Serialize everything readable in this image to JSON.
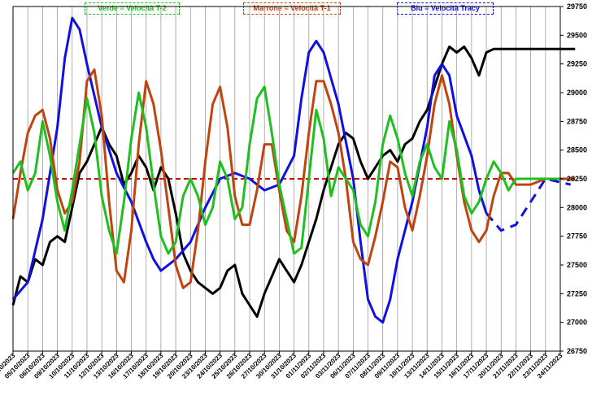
{
  "chart_data": {
    "type": "line",
    "title": "",
    "legend": [
      {
        "label": "Verde = Velocità T-2",
        "color": "#1fbf1f"
      },
      {
        "label": "Marrone = Velocità T-1",
        "color": "#c0440f"
      },
      {
        "label": "Blu = Velocità Tracy",
        "color": "#1010e0"
      }
    ],
    "ylim": [
      26750,
      29750
    ],
    "yticks": [
      26750,
      27000,
      27250,
      27500,
      27750,
      28000,
      28250,
      28500,
      28750,
      29000,
      29250,
      29500,
      29750
    ],
    "x_tick_labels": [
      "04/10/2023",
      "05/10/2023",
      "06/10/2023",
      "09/10/2023",
      "10/10/2023",
      "11/10/2023",
      "12/10/2023",
      "13/10/2023",
      "16/10/2023",
      "17/10/2023",
      "18/10/2023",
      "19/10/2023",
      "20/10/2023",
      "23/10/2023",
      "24/10/2023",
      "25/10/2023",
      "26/10/2023",
      "27/10/2023",
      "30/10/2023",
      "31/10/2023",
      "01/11/2023",
      "02/11/2023",
      "03/11/2023",
      "06/11/2023",
      "07/11/2023",
      "08/11/2023",
      "09/11/2023",
      "10/11/2023",
      "13/11/2023",
      "14/11/2023",
      "15/11/2023",
      "16/11/2023",
      "17/11/2023",
      "20/11/2023",
      "21/11/2023",
      "22/11/2023",
      "23/11/2023",
      "24/11/2023"
    ],
    "reference_line": {
      "value": 28250,
      "color": "#cc0000",
      "style": "dashed"
    },
    "series": [
      {
        "color": "#000000",
        "style": "solid",
        "points": [
          [
            0,
            27150
          ],
          [
            0.5,
            27400
          ],
          [
            1,
            27350
          ],
          [
            1.5,
            27550
          ],
          [
            2,
            27500
          ],
          [
            2.5,
            27700
          ],
          [
            3,
            27750
          ],
          [
            3.5,
            27700
          ],
          [
            4,
            28000
          ],
          [
            4.5,
            28300
          ],
          [
            5,
            28400
          ],
          [
            5.5,
            28550
          ],
          [
            6,
            28700
          ],
          [
            6.5,
            28550
          ],
          [
            7,
            28450
          ],
          [
            7.5,
            28200
          ],
          [
            8,
            28300
          ],
          [
            8.5,
            28450
          ],
          [
            9,
            28350
          ],
          [
            9.5,
            28150
          ],
          [
            10,
            28350
          ],
          [
            10.5,
            28250
          ],
          [
            11,
            27950
          ],
          [
            11.5,
            27600
          ],
          [
            12,
            27450
          ],
          [
            12.5,
            27350
          ],
          [
            13,
            27300
          ],
          [
            13.5,
            27250
          ],
          [
            14,
            27300
          ],
          [
            14.5,
            27450
          ],
          [
            15,
            27500
          ],
          [
            15.5,
            27250
          ],
          [
            16,
            27150
          ],
          [
            16.5,
            27050
          ],
          [
            17,
            27250
          ],
          [
            17.5,
            27400
          ],
          [
            18,
            27550
          ],
          [
            18.5,
            27450
          ],
          [
            19,
            27350
          ],
          [
            19.5,
            27500
          ],
          [
            20,
            27700
          ],
          [
            20.5,
            27900
          ],
          [
            21,
            28150
          ],
          [
            21.5,
            28350
          ],
          [
            22,
            28550
          ],
          [
            22.5,
            28650
          ],
          [
            23,
            28600
          ],
          [
            23.5,
            28400
          ],
          [
            24,
            28250
          ],
          [
            24.5,
            28350
          ],
          [
            25,
            28450
          ],
          [
            25.5,
            28500
          ],
          [
            26,
            28400
          ],
          [
            26.5,
            28550
          ],
          [
            27,
            28600
          ],
          [
            27.5,
            28750
          ],
          [
            28,
            28850
          ],
          [
            28.5,
            29050
          ],
          [
            29,
            29250
          ],
          [
            29.5,
            29400
          ],
          [
            30,
            29350
          ],
          [
            30.5,
            29400
          ],
          [
            31,
            29300
          ],
          [
            31.5,
            29150
          ],
          [
            32,
            29350
          ],
          [
            32.5,
            29380
          ],
          [
            33,
            29380
          ],
          [
            35,
            29380
          ],
          [
            37,
            29380
          ],
          [
            38,
            29380
          ]
        ]
      },
      {
        "color": "#1010e0",
        "style": "solid",
        "points": [
          [
            0,
            27200
          ],
          [
            1,
            27350
          ],
          [
            2,
            27900
          ],
          [
            3,
            28700
          ],
          [
            3.5,
            29300
          ],
          [
            4,
            29650
          ],
          [
            4.5,
            29550
          ],
          [
            5,
            29250
          ],
          [
            6,
            28700
          ],
          [
            7,
            28300
          ],
          [
            8,
            28050
          ],
          [
            9,
            27700
          ],
          [
            9.5,
            27550
          ],
          [
            10,
            27450
          ],
          [
            11,
            27550
          ],
          [
            12,
            27700
          ],
          [
            13,
            28000
          ],
          [
            14,
            28250
          ],
          [
            15,
            28300
          ],
          [
            16,
            28250
          ],
          [
            17,
            28150
          ],
          [
            18,
            28200
          ],
          [
            19,
            28450
          ],
          [
            19.5,
            28950
          ],
          [
            20,
            29350
          ],
          [
            20.5,
            29450
          ],
          [
            21,
            29350
          ],
          [
            22,
            28900
          ],
          [
            23,
            28250
          ],
          [
            23.5,
            27700
          ],
          [
            24,
            27200
          ],
          [
            24.5,
            27050
          ],
          [
            25,
            27000
          ],
          [
            25.5,
            27200
          ],
          [
            26,
            27550
          ],
          [
            27,
            28050
          ],
          [
            28,
            28700
          ],
          [
            28.5,
            29150
          ],
          [
            29,
            29250
          ],
          [
            29.5,
            29150
          ],
          [
            30,
            28800
          ],
          [
            31,
            28450
          ],
          [
            31.5,
            28150
          ],
          [
            32,
            27950
          ]
        ]
      },
      {
        "color": "#1010e0",
        "style": "dashed",
        "points": [
          [
            32,
            27950
          ],
          [
            33,
            27800
          ],
          [
            34,
            27850
          ],
          [
            35,
            28050
          ],
          [
            36,
            28250
          ],
          [
            37,
            28220
          ],
          [
            37.7,
            28200
          ]
        ]
      },
      {
        "color": "#c0440f",
        "style": "solid",
        "points": [
          [
            0,
            27900
          ],
          [
            0.5,
            28300
          ],
          [
            1,
            28650
          ],
          [
            1.5,
            28800
          ],
          [
            2,
            28850
          ],
          [
            2.5,
            28600
          ],
          [
            3,
            28150
          ],
          [
            3.5,
            27950
          ],
          [
            4,
            28050
          ],
          [
            4.5,
            28400
          ],
          [
            5,
            29100
          ],
          [
            5.5,
            29200
          ],
          [
            6,
            28800
          ],
          [
            6.5,
            28050
          ],
          [
            7,
            27450
          ],
          [
            7.5,
            27350
          ],
          [
            8,
            27800
          ],
          [
            8.5,
            28550
          ],
          [
            9,
            29100
          ],
          [
            9.5,
            28900
          ],
          [
            10,
            28500
          ],
          [
            10.5,
            28000
          ],
          [
            11,
            27500
          ],
          [
            11.5,
            27300
          ],
          [
            12,
            27350
          ],
          [
            12.5,
            27800
          ],
          [
            13,
            28400
          ],
          [
            13.5,
            28900
          ],
          [
            14,
            29050
          ],
          [
            14.5,
            28700
          ],
          [
            15,
            28100
          ],
          [
            15.5,
            27850
          ],
          [
            16,
            27850
          ],
          [
            16.5,
            28150
          ],
          [
            17,
            28550
          ],
          [
            17.5,
            28550
          ],
          [
            18,
            28150
          ],
          [
            18.5,
            27800
          ],
          [
            19,
            27700
          ],
          [
            19.5,
            28100
          ],
          [
            20,
            28650
          ],
          [
            20.5,
            29100
          ],
          [
            21,
            29100
          ],
          [
            21.5,
            28900
          ],
          [
            22,
            28650
          ],
          [
            22.5,
            28250
          ],
          [
            23,
            27700
          ],
          [
            23.5,
            27550
          ],
          [
            24,
            27500
          ],
          [
            24.5,
            27750
          ],
          [
            25,
            28050
          ],
          [
            25.5,
            28400
          ],
          [
            26,
            28350
          ],
          [
            26.5,
            28000
          ],
          [
            27,
            27800
          ],
          [
            27.5,
            28100
          ],
          [
            28,
            28450
          ],
          [
            28.5,
            28900
          ],
          [
            29,
            29150
          ],
          [
            29.5,
            28900
          ],
          [
            30,
            28450
          ],
          [
            30.5,
            28050
          ],
          [
            31,
            27800
          ],
          [
            31.5,
            27700
          ],
          [
            32,
            27800
          ],
          [
            32.5,
            28100
          ],
          [
            33,
            28300
          ],
          [
            33.5,
            28300
          ],
          [
            34,
            28200
          ],
          [
            35,
            28200
          ],
          [
            36,
            28250
          ],
          [
            37,
            28250
          ],
          [
            38,
            28250
          ]
        ]
      },
      {
        "color": "#1fbf1f",
        "style": "solid",
        "points": [
          [
            0,
            28300
          ],
          [
            0.5,
            28400
          ],
          [
            1,
            28150
          ],
          [
            1.5,
            28300
          ],
          [
            2,
            28750
          ],
          [
            2.5,
            28450
          ],
          [
            3,
            28050
          ],
          [
            3.5,
            27800
          ],
          [
            4,
            28150
          ],
          [
            4.5,
            28550
          ],
          [
            5,
            28950
          ],
          [
            5.5,
            28650
          ],
          [
            6,
            28100
          ],
          [
            6.5,
            27800
          ],
          [
            7,
            27600
          ],
          [
            7.5,
            28050
          ],
          [
            8,
            28600
          ],
          [
            8.5,
            29000
          ],
          [
            9,
            28700
          ],
          [
            9.5,
            28200
          ],
          [
            10,
            27750
          ],
          [
            10.5,
            27600
          ],
          [
            11,
            27700
          ],
          [
            11.5,
            28100
          ],
          [
            12,
            28250
          ],
          [
            12.5,
            28100
          ],
          [
            13,
            27850
          ],
          [
            13.5,
            28000
          ],
          [
            14,
            28400
          ],
          [
            14.5,
            28250
          ],
          [
            15,
            27900
          ],
          [
            15.5,
            28000
          ],
          [
            16,
            28550
          ],
          [
            16.5,
            28950
          ],
          [
            17,
            29050
          ],
          [
            17.5,
            28650
          ],
          [
            18,
            28200
          ],
          [
            18.5,
            27900
          ],
          [
            19,
            27600
          ],
          [
            19.5,
            27650
          ],
          [
            20,
            28250
          ],
          [
            20.5,
            28850
          ],
          [
            21,
            28600
          ],
          [
            21.5,
            28100
          ],
          [
            22,
            28350
          ],
          [
            22.5,
            28250
          ],
          [
            23,
            28150
          ],
          [
            23.5,
            27850
          ],
          [
            24,
            27750
          ],
          [
            24.5,
            28050
          ],
          [
            25,
            28550
          ],
          [
            25.5,
            28800
          ],
          [
            26,
            28600
          ],
          [
            26.5,
            28300
          ],
          [
            27,
            28100
          ],
          [
            27.5,
            28400
          ],
          [
            28,
            28550
          ],
          [
            28.5,
            28350
          ],
          [
            29,
            28250
          ],
          [
            29.5,
            28750
          ],
          [
            30,
            28500
          ],
          [
            30.5,
            28100
          ],
          [
            31,
            27950
          ],
          [
            31.5,
            28050
          ],
          [
            32,
            28250
          ],
          [
            32.5,
            28400
          ],
          [
            33,
            28300
          ],
          [
            33.5,
            28150
          ],
          [
            34,
            28250
          ],
          [
            35,
            28250
          ],
          [
            36,
            28250
          ],
          [
            37,
            28250
          ]
        ]
      }
    ]
  }
}
